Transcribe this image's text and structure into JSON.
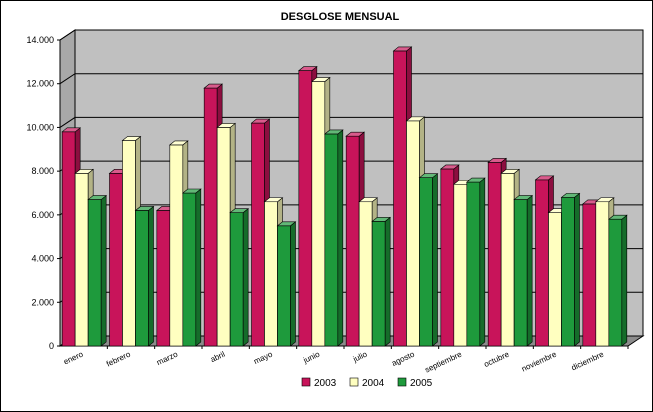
{
  "chart_data": {
    "type": "bar",
    "title": "DESGLOSE MENSUAL",
    "categories": [
      "enero",
      "febrero",
      "marzo",
      "abril",
      "mayo",
      "junio",
      "julio",
      "agosto",
      "septiembre",
      "octubre",
      "noviembre",
      "diciembre"
    ],
    "series": [
      {
        "name": "2003",
        "color": "#c8145a",
        "values": [
          9800,
          7900,
          6200,
          11800,
          10200,
          12600,
          9600,
          13500,
          8100,
          8400,
          7600,
          6500
        ]
      },
      {
        "name": "2004",
        "color": "#ffffc0",
        "values": [
          7900,
          9400,
          9200,
          10000,
          6600,
          12100,
          6600,
          10300,
          7400,
          7900,
          6100,
          6600
        ]
      },
      {
        "name": "2005",
        "color": "#1e9a3c",
        "values": [
          6700,
          6200,
          7000,
          6100,
          5500,
          9700,
          5700,
          7700,
          7500,
          6700,
          6800,
          5800
        ]
      }
    ],
    "y_ticks": [
      "0",
      "2.000",
      "4.000",
      "6.000",
      "8.000",
      "10.000",
      "12.000",
      "14.000"
    ],
    "ylim": [
      0,
      14000
    ],
    "legend_labels": [
      "2003",
      "2004",
      "2005"
    ],
    "legend_position": "bottom",
    "grid": true,
    "wall_color": "#c0c0c0"
  }
}
